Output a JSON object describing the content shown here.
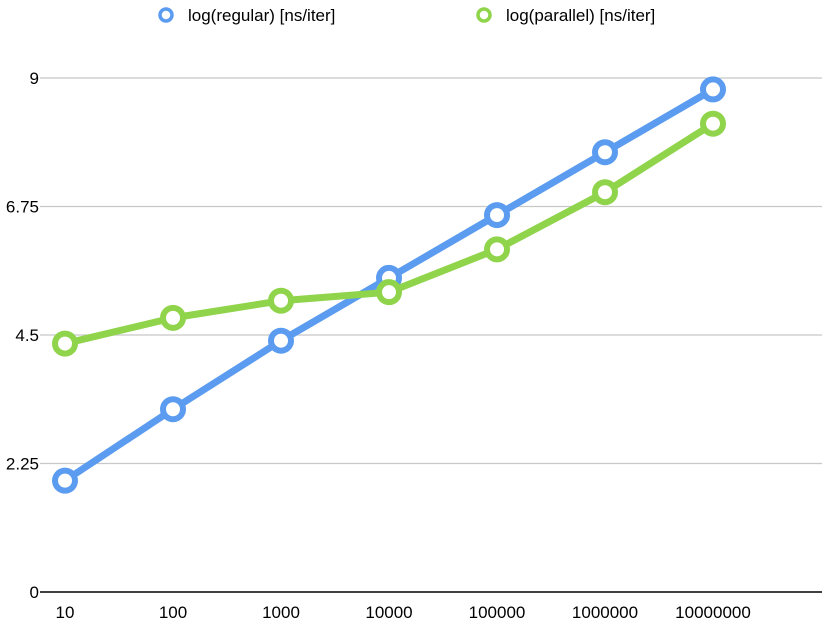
{
  "chart_data": {
    "type": "line",
    "title": "",
    "xlabel": "",
    "ylabel": "",
    "categories": [
      "10",
      "100",
      "1000",
      "10000",
      "100000",
      "1000000",
      "10000000"
    ],
    "yticks": [
      "0",
      "2.25",
      "4.5",
      "6.75",
      "9"
    ],
    "ylim": [
      0,
      9
    ],
    "grid": true,
    "legend_position": "top",
    "series": [
      {
        "name": "log(regular) [ns/iter]",
        "color": "#5b9cf0",
        "values": [
          1.95,
          3.2,
          4.4,
          5.5,
          6.6,
          7.7,
          8.8
        ]
      },
      {
        "name": "log(parallel) [ns/iter]",
        "color": "#8fd44b",
        "values": [
          4.35,
          4.8,
          5.1,
          5.25,
          6.0,
          7.0,
          8.2
        ]
      }
    ]
  }
}
